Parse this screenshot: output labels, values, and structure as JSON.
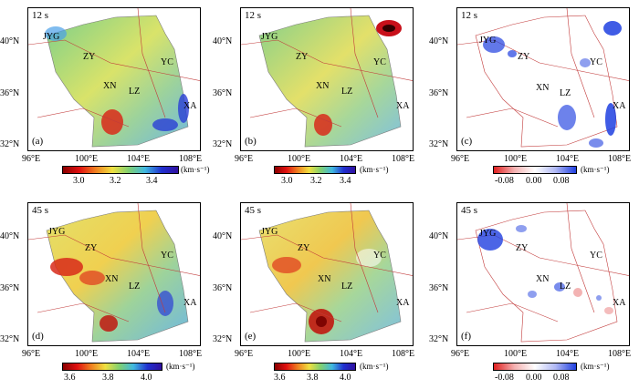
{
  "axes": {
    "x_ticks": [
      "96°E",
      "100°E",
      "104°E",
      "108°E"
    ],
    "y_ticks": [
      "40°N",
      "36°N",
      "32°N"
    ]
  },
  "cities": [
    "JYG",
    "ZY",
    "YC",
    "XN",
    "LZ",
    "XA"
  ],
  "panels": [
    {
      "label": "(a)",
      "period": "12 s",
      "kind": "velocity"
    },
    {
      "label": "(b)",
      "period": "12 s",
      "kind": "velocity"
    },
    {
      "label": "(c)",
      "period": "12 s",
      "kind": "difference"
    },
    {
      "label": "(d)",
      "period": "45 s",
      "kind": "velocity"
    },
    {
      "label": "(e)",
      "period": "45 s",
      "kind": "velocity"
    },
    {
      "label": "(f)",
      "period": "45 s",
      "kind": "difference"
    }
  ],
  "colorbars": {
    "top_velocity": {
      "ticks": [
        "3.0",
        "3.2",
        "3.4"
      ],
      "unit": "(km·s⁻¹)"
    },
    "bottom_velocity": {
      "ticks": [
        "3.6",
        "3.8",
        "4.0"
      ],
      "unit": "(km·s⁻¹)"
    },
    "difference": {
      "ticks": [
        "-0.08",
        "0.00",
        "0.08"
      ],
      "unit": "(km·s⁻¹)"
    }
  },
  "colors": {
    "boundary": "#c23b3b",
    "difference_positive": "#1f3fe0",
    "difference_negative": "#e04040"
  }
}
